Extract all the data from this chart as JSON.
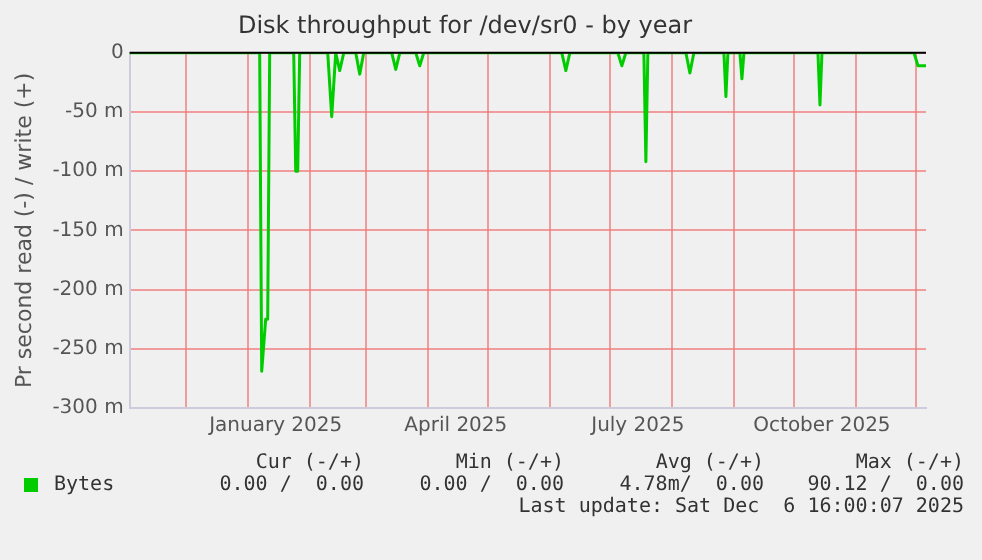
{
  "chart_data": {
    "type": "line",
    "title": "Disk throughput for /dev/sr0 - by year",
    "ylabel": "Pr second read (-) / write (+)",
    "x": [
      "2024-11-03",
      "2025-01-07",
      "2025-01-08",
      "2025-01-10",
      "2025-01-11",
      "2025-01-12",
      "2025-01-24",
      "2025-01-25",
      "2025-01-26",
      "2025-01-27",
      "2025-02-10",
      "2025-02-12",
      "2025-02-14",
      "2025-02-16",
      "2025-02-18",
      "2025-02-24",
      "2025-02-26",
      "2025-02-28",
      "2025-03-14",
      "2025-03-16",
      "2025-03-18",
      "2025-03-26",
      "2025-03-28",
      "2025-03-30",
      "2025-06-07",
      "2025-06-09",
      "2025-06-11",
      "2025-07-05",
      "2025-07-07",
      "2025-07-09",
      "2025-07-18",
      "2025-07-19",
      "2025-07-20",
      "2025-08-08",
      "2025-08-10",
      "2025-08-12",
      "2025-08-27",
      "2025-08-28",
      "2025-08-29",
      "2025-09-04",
      "2025-09-05",
      "2025-09-06",
      "2025-10-13",
      "2025-10-14",
      "2025-10-15",
      "2025-11-30",
      "2025-12-02",
      "2025-12-06"
    ],
    "series": [
      {
        "name": "Bytes",
        "color": "#00cc00",
        "values": [
          0,
          0,
          -269,
          -225,
          -225,
          0,
          0,
          -100,
          -100,
          0,
          0,
          -54,
          0,
          -15,
          0,
          0,
          -18,
          0,
          0,
          -14,
          0,
          0,
          -11,
          0,
          0,
          -15,
          0,
          0,
          -11,
          0,
          0,
          -92,
          0,
          0,
          -17,
          0,
          0,
          -37,
          0,
          0,
          -22,
          0,
          0,
          -44,
          0,
          0,
          -11,
          -11
        ]
      }
    ],
    "xlim": [
      "2024-11-03",
      "2025-12-06"
    ],
    "xticks": [
      {
        "value": "2024-12-01",
        "label": null
      },
      {
        "value": "2025-01-01",
        "label": null
      },
      {
        "value": "2025-01-15",
        "label": "January 2025"
      },
      {
        "value": "2025-02-01",
        "label": null
      },
      {
        "value": "2025-03-01",
        "label": null
      },
      {
        "value": "2025-04-01",
        "label": null
      },
      {
        "value": "2025-04-15",
        "label": "April 2025"
      },
      {
        "value": "2025-05-01",
        "label": null
      },
      {
        "value": "2025-06-01",
        "label": null
      },
      {
        "value": "2025-07-01",
        "label": null
      },
      {
        "value": "2025-07-15",
        "label": "July 2025"
      },
      {
        "value": "2025-08-01",
        "label": null
      },
      {
        "value": "2025-09-01",
        "label": null
      },
      {
        "value": "2025-10-01",
        "label": null
      },
      {
        "value": "2025-10-15",
        "label": "October 2025"
      },
      {
        "value": "2025-11-01",
        "label": null
      },
      {
        "value": "2025-12-01",
        "label": null
      }
    ],
    "ylim": [
      -300,
      0
    ],
    "yticks": [
      {
        "value": -300,
        "label": "-300 m"
      },
      {
        "value": -250,
        "label": "-250 m"
      },
      {
        "value": -200,
        "label": "-200 m"
      },
      {
        "value": -150,
        "label": "-150 m"
      },
      {
        "value": -100,
        "label": "-100 m"
      },
      {
        "value": -50,
        "label": "-50 m"
      },
      0
    ],
    "grid": true,
    "legend": "bottom",
    "annotations": [
      "Cur (-/+)",
      "Min (-/+)",
      "Avg (-/+)",
      "Max (-/+)",
      "0.00 /  0.00",
      "0.00 /  0.00",
      "4.78m/  0.00",
      "90.12 /  0.00",
      "Last update: Sat Dec  6 16:00:07 2025"
    ]
  }
}
